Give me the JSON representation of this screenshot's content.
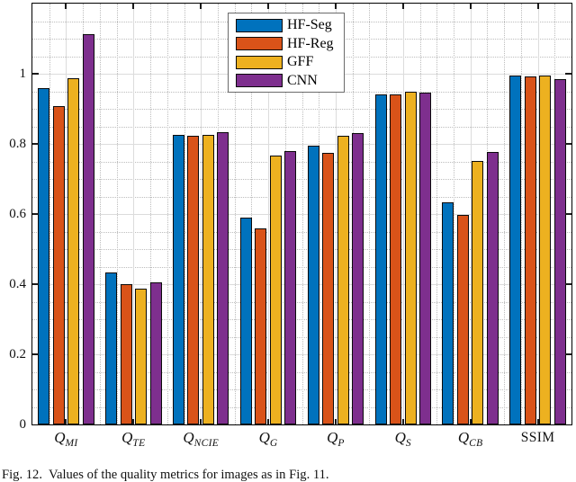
{
  "caption": "Fig. 12.  Values of the quality metrics for images as in Fig. 11.",
  "chart_data": {
    "type": "bar",
    "title": "",
    "xlabel": "",
    "ylabel": "",
    "categories": [
      "Q_MI",
      "Q_TE",
      "Q_NCIE",
      "Q_G",
      "Q_P",
      "Q_S",
      "Q_CB",
      "SSIM"
    ],
    "series": [
      {
        "name": "HF-Seg",
        "color": "#0072BD",
        "values": [
          0.96,
          0.434,
          0.825,
          0.589,
          0.795,
          0.942,
          0.633,
          0.996
        ]
      },
      {
        "name": "HF-Reg",
        "color": "#D95319",
        "values": [
          0.907,
          0.4,
          0.822,
          0.558,
          0.774,
          0.941,
          0.597,
          0.992
        ]
      },
      {
        "name": "GFF",
        "color": "#EDB120",
        "values": [
          0.988,
          0.388,
          0.825,
          0.766,
          0.823,
          0.95,
          0.752,
          0.994
        ]
      },
      {
        "name": "CNN",
        "color": "#7E2F8E",
        "values": [
          1.112,
          0.405,
          0.833,
          0.78,
          0.831,
          0.946,
          0.777,
          0.985
        ]
      }
    ],
    "ylim": [
      0,
      1.2
    ],
    "ytick_values": [
      0,
      0.2,
      0.4,
      0.6,
      0.8,
      1
    ],
    "ytick_labels": [
      "0",
      "0.2",
      "0.4",
      "0.6",
      "0.8",
      "1"
    ],
    "minor_y_step": 0.05,
    "grid": {
      "major": "solid",
      "minor": "dotted",
      "on": true
    },
    "legend_position": "top-center",
    "bar_edge_color": "#000000"
  }
}
